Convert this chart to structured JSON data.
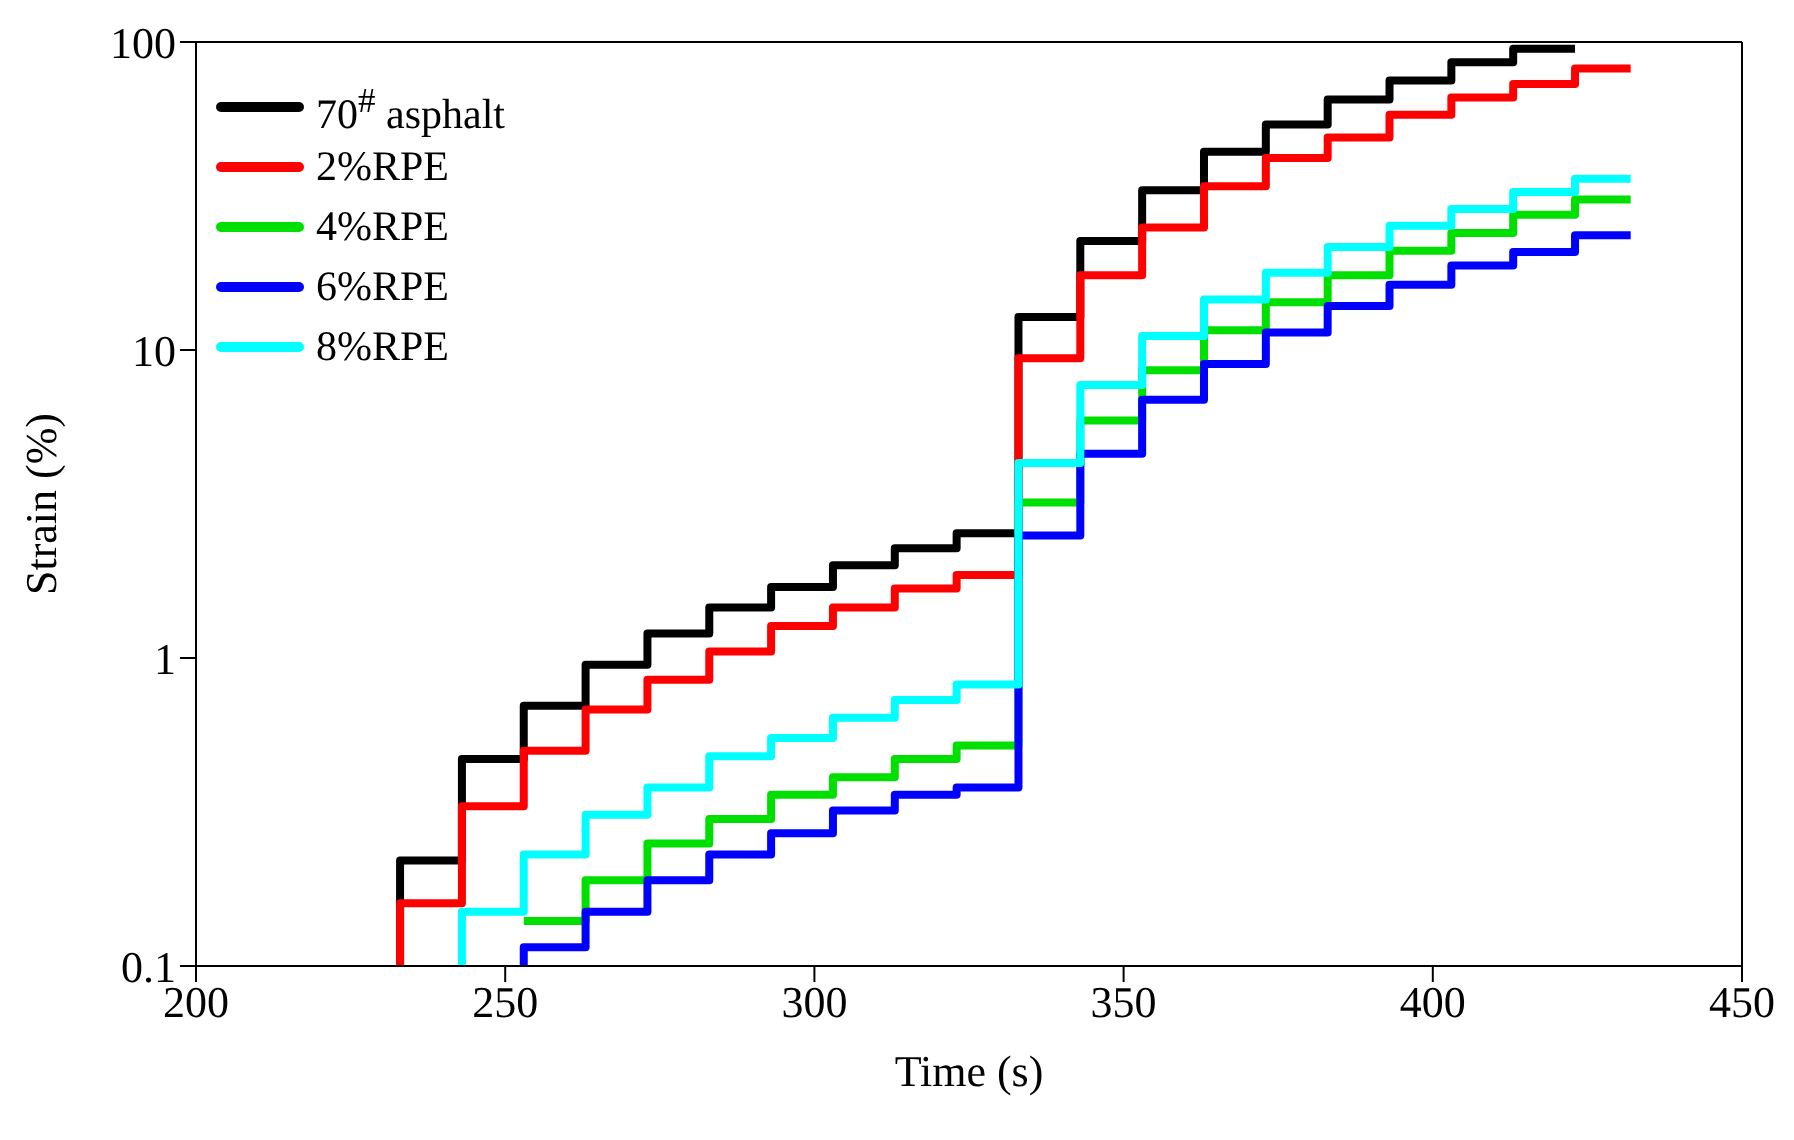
{
  "chart_data": {
    "type": "step",
    "xlabel": "Time (s)",
    "ylabel": "Strain (%)",
    "xlim": [
      200,
      450
    ],
    "xticks": [
      200,
      250,
      300,
      350,
      400,
      450
    ],
    "ylim": [
      0.1,
      100
    ],
    "yticks": [
      0.1,
      1,
      10,
      100
    ],
    "log": "y",
    "grid": false,
    "legend": "top left",
    "marker": "none",
    "line_style": "solid",
    "series": [
      {
        "name": "70$^{#}$ asphalt",
        "color": "#000000",
        "x": [
          233,
          233,
          243,
          253,
          263,
          273,
          283,
          293,
          303,
          313,
          323,
          333,
          343,
          353,
          363,
          373,
          383,
          393,
          403,
          413,
          423
        ],
        "values": [
          0.1,
          0.22,
          0.47,
          0.7,
          0.95,
          1.2,
          1.46,
          1.7,
          2.0,
          2.27,
          2.54,
          12.8,
          22.6,
          33,
          44,
          54,
          65,
          75,
          86,
          95,
          95
        ]
      },
      {
        "name": "2%RPE",
        "color": "#ff0000",
        "x": [
          233,
          233,
          243,
          253,
          263,
          273,
          283,
          293,
          303,
          313,
          323,
          333,
          343,
          353,
          363,
          373,
          383,
          393,
          403,
          413,
          423,
          432
        ],
        "values": [
          0.1,
          0.16,
          0.33,
          0.5,
          0.68,
          0.85,
          1.05,
          1.27,
          1.46,
          1.68,
          1.86,
          9.4,
          17.5,
          25,
          34,
          42,
          49,
          58,
          66,
          73,
          82,
          82
        ]
      },
      {
        "name": "4%RPE",
        "color": "#00e000",
        "x": [
          253,
          263,
          273,
          283,
          293,
          303,
          313,
          323,
          333,
          343,
          353,
          363,
          373,
          383,
          393,
          403,
          413,
          423,
          432
        ],
        "values": [
          0.14,
          0.19,
          0.25,
          0.3,
          0.36,
          0.41,
          0.47,
          0.52,
          3.2,
          5.9,
          8.6,
          11.6,
          14.3,
          17.5,
          21,
          24,
          27.5,
          30.8,
          30.8
        ]
      },
      {
        "name": "6%RPE",
        "color": "#0000ff",
        "x": [
          253,
          253,
          263,
          273,
          283,
          293,
          303,
          313,
          323,
          333,
          343,
          353,
          363,
          373,
          383,
          393,
          403,
          413,
          423,
          432
        ],
        "values": [
          0.1,
          0.115,
          0.15,
          0.19,
          0.23,
          0.27,
          0.32,
          0.36,
          0.38,
          2.5,
          4.6,
          6.9,
          9.0,
          11.4,
          13.9,
          16.3,
          18.8,
          20.8,
          23.6,
          23.6
        ]
      },
      {
        "name": "8%RPE",
        "color": "#00ffff",
        "x": [
          243,
          243,
          253,
          263,
          273,
          283,
          293,
          303,
          313,
          323,
          333,
          343,
          353,
          363,
          373,
          383,
          393,
          403,
          413,
          423,
          432
        ],
        "values": [
          0.1,
          0.15,
          0.23,
          0.31,
          0.38,
          0.48,
          0.55,
          0.64,
          0.73,
          0.82,
          4.3,
          7.7,
          11.1,
          14.6,
          17.8,
          21.6,
          25.3,
          28.7,
          32.6,
          36,
          36
        ]
      }
    ]
  }
}
